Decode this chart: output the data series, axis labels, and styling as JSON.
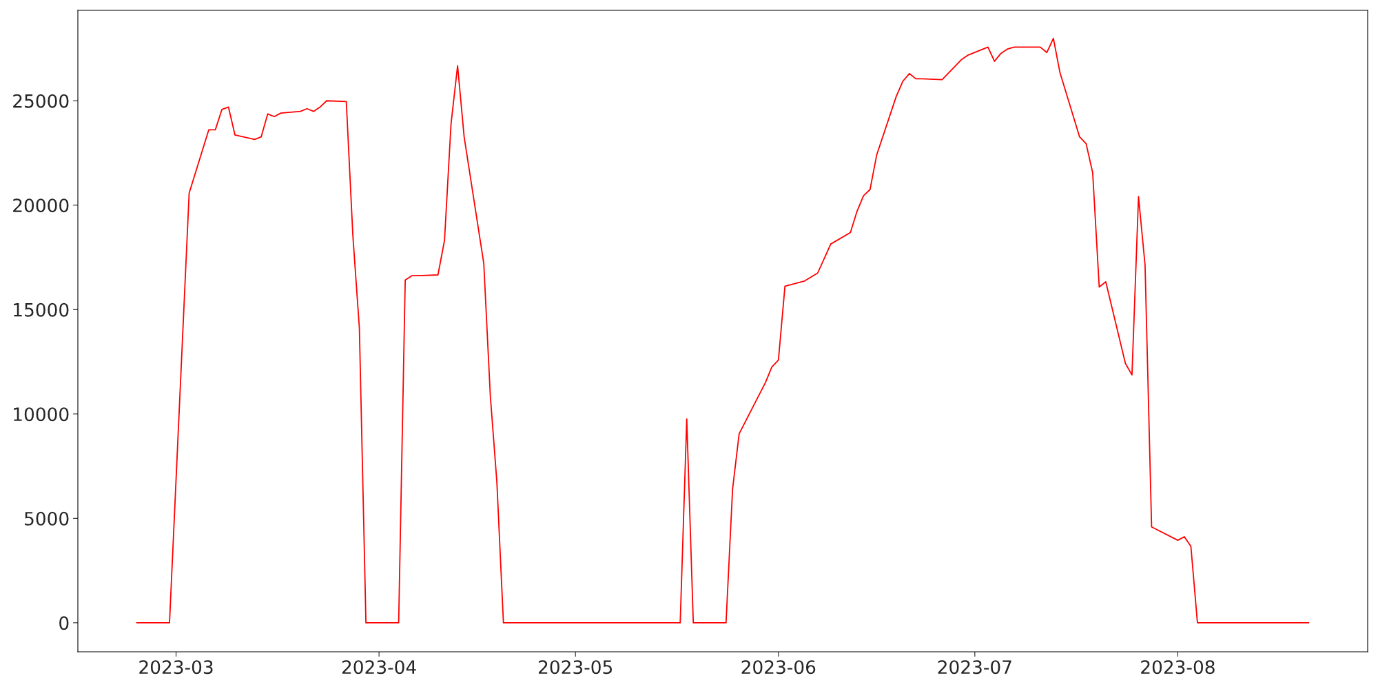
{
  "chart_data": {
    "type": "line",
    "x": [
      "2023-02-23",
      "2023-02-28",
      "2023-03-03",
      "2023-03-06",
      "2023-03-07",
      "2023-03-08",
      "2023-03-09",
      "2023-03-10",
      "2023-03-13",
      "2023-03-14",
      "2023-03-15",
      "2023-03-16",
      "2023-03-17",
      "2023-03-20",
      "2023-03-21",
      "2023-03-22",
      "2023-03-23",
      "2023-03-24",
      "2023-03-27",
      "2023-03-28",
      "2023-03-29",
      "2023-03-30",
      "2023-04-04",
      "2023-04-05",
      "2023-04-06",
      "2023-04-07",
      "2023-04-10",
      "2023-04-11",
      "2023-04-12",
      "2023-04-13",
      "2023-04-14",
      "2023-04-17",
      "2023-04-18",
      "2023-04-19",
      "2023-04-20",
      "2023-05-17",
      "2023-05-18",
      "2023-05-19",
      "2023-05-24",
      "2023-05-25",
      "2023-05-26",
      "2023-05-30",
      "2023-05-31",
      "2023-06-01",
      "2023-06-02",
      "2023-06-05",
      "2023-06-07",
      "2023-06-09",
      "2023-06-12",
      "2023-06-13",
      "2023-06-14",
      "2023-06-15",
      "2023-06-16",
      "2023-06-19",
      "2023-06-20",
      "2023-06-21",
      "2023-06-22",
      "2023-06-23",
      "2023-06-26",
      "2023-06-29",
      "2023-06-30",
      "2023-07-03",
      "2023-07-04",
      "2023-07-05",
      "2023-07-06",
      "2023-07-07",
      "2023-07-11",
      "2023-07-12",
      "2023-07-13",
      "2023-07-14",
      "2023-07-17",
      "2023-07-18",
      "2023-07-19",
      "2023-07-20",
      "2023-07-21",
      "2023-07-24",
      "2023-07-25",
      "2023-07-26",
      "2023-07-27",
      "2023-07-28",
      "2023-08-01",
      "2023-08-02",
      "2023-08-03",
      "2023-08-04",
      "2023-08-21"
    ],
    "series": [
      {
        "color": "#ff0000",
        "values": [
          0,
          0,
          20580,
          23610,
          23610,
          24580,
          24700,
          23360,
          23150,
          23270,
          24370,
          24240,
          24410,
          24490,
          24620,
          24490,
          24700,
          25000,
          24960,
          18560,
          14100,
          0,
          0,
          16410,
          16620,
          16620,
          16660,
          18310,
          23900,
          26680,
          23270,
          17210,
          10860,
          6730,
          0,
          0,
          9760,
          0,
          0,
          6400,
          9050,
          11490,
          12250,
          12580,
          16120,
          16370,
          16750,
          18140,
          18690,
          19700,
          20450,
          20750,
          22390,
          25210,
          25930,
          26300,
          26050,
          26050,
          26010,
          26980,
          27190,
          27570,
          26890,
          27270,
          27480,
          27570,
          27570,
          27310,
          27990,
          26350,
          23270,
          22940,
          21550,
          16080,
          16330,
          12420,
          11870,
          20410,
          17130,
          4590,
          3950,
          4120,
          3660,
          0,
          0
        ]
      }
    ],
    "xlim": [
      "2023-02-14",
      "2023-08-30"
    ],
    "xticks": [
      {
        "value": "2023-03-01",
        "label": "2023-03"
      },
      {
        "value": "2023-04-01",
        "label": "2023-04"
      },
      {
        "value": "2023-05-01",
        "label": "2023-05"
      },
      {
        "value": "2023-06-01",
        "label": "2023-06"
      },
      {
        "value": "2023-07-01",
        "label": "2023-07"
      },
      {
        "value": "2023-08-01",
        "label": "2023-08"
      }
    ],
    "ylim": [
      -1390,
      29330
    ],
    "yticks": [
      0,
      5000,
      10000,
      15000,
      20000,
      25000
    ],
    "grid": false,
    "legend": false,
    "marker": "none",
    "line_style": "solid"
  }
}
